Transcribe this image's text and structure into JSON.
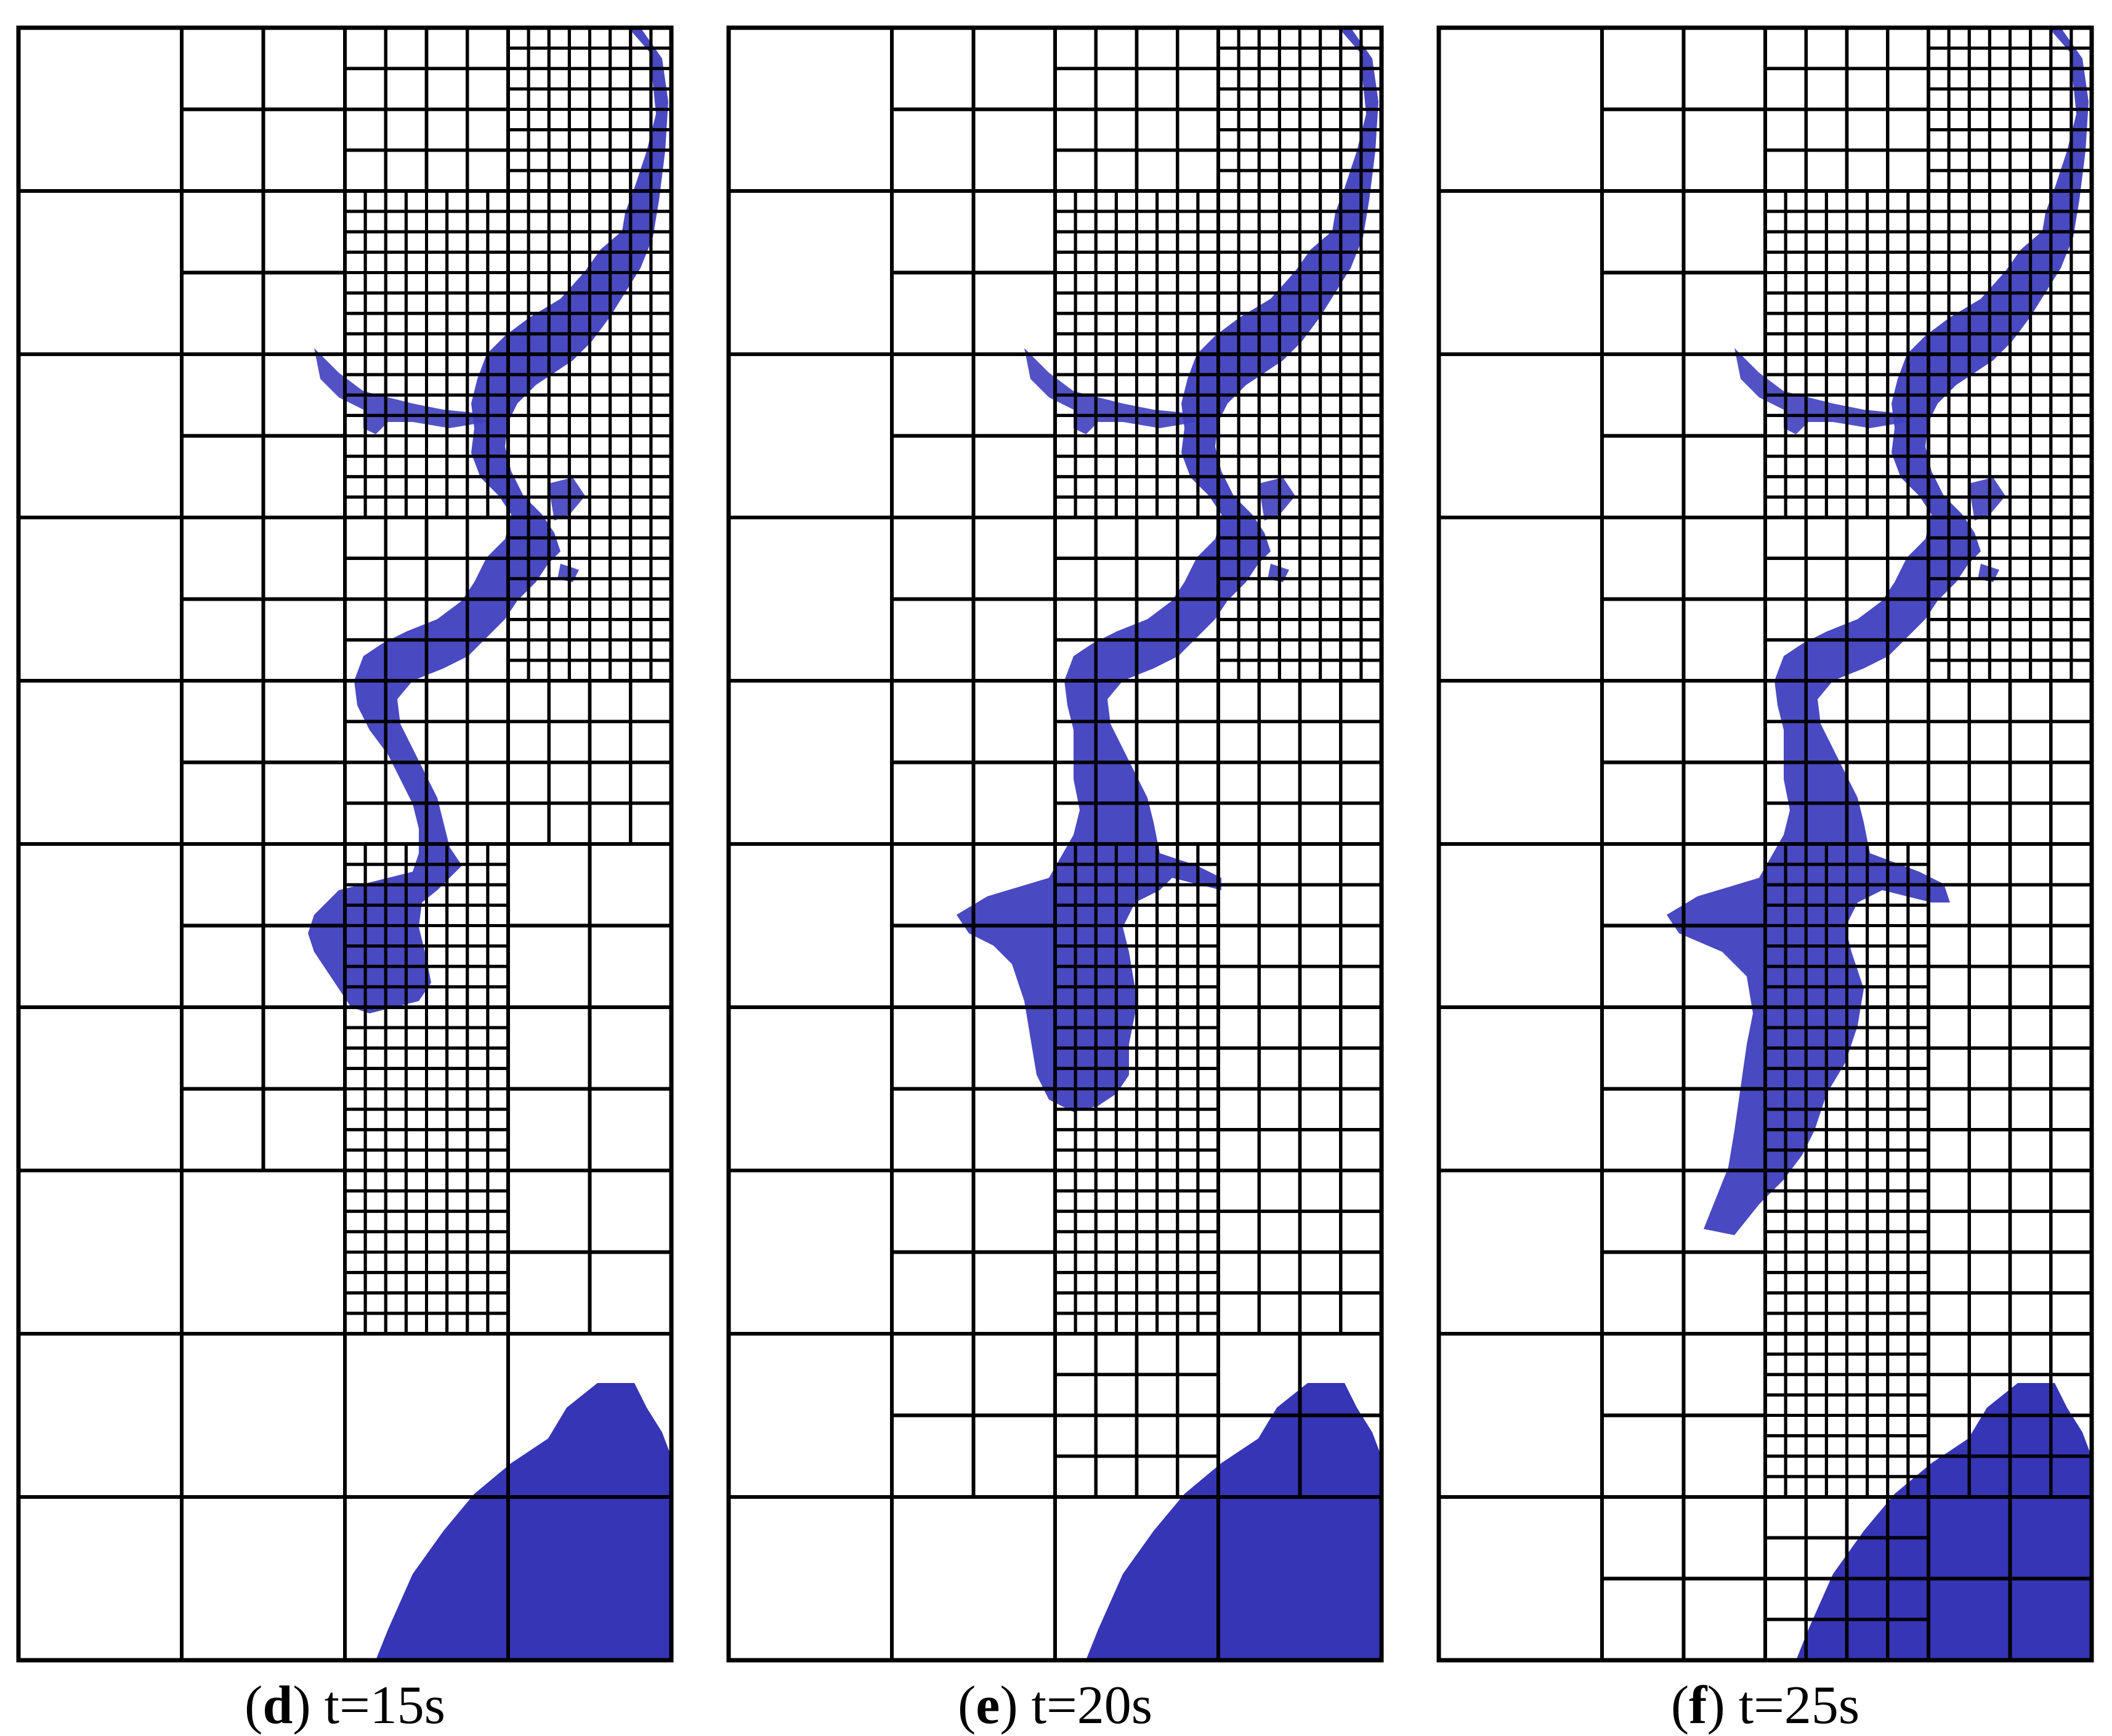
{
  "figure": {
    "water_color": "#3f3fbf",
    "water_edge_color": "#7f7fdf",
    "grid_color": "#000000",
    "background": "#ffffff",
    "panels": [
      {
        "id": "d",
        "letter": "d",
        "time_label": "t=15s"
      },
      {
        "id": "e",
        "letter": "e",
        "time_label": "t=20s"
      },
      {
        "id": "f",
        "letter": "f",
        "time_label": "t=25s"
      }
    ]
  }
}
